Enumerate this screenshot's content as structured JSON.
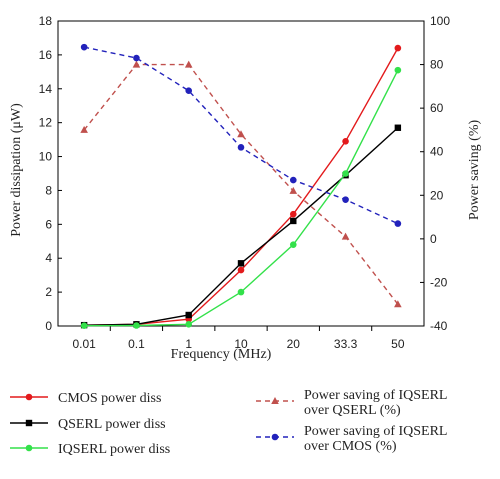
{
  "chart_data": {
    "type": "line",
    "categories": [
      "0.01",
      "0.1",
      "1",
      "10",
      "20",
      "33.3",
      "50"
    ],
    "xlabel": "Frequency (MHz)",
    "ylabel_left": "Power dissipation (μW)",
    "ylabel_right": "Power saving (%)",
    "ylim_left": [
      0,
      18
    ],
    "ylim_right": [
      -40,
      100
    ],
    "yticks_left": [
      0,
      2,
      4,
      6,
      8,
      10,
      12,
      14,
      16,
      18
    ],
    "yticks_right": [
      -40,
      -20,
      0,
      20,
      40,
      60,
      80,
      100
    ],
    "grid": false,
    "legend_position": "bottom",
    "series": [
      {
        "name": "CMOS power diss",
        "axis": "left",
        "color": "#e31a1c",
        "marker": "circle",
        "dash": false,
        "values": [
          0.05,
          0.1,
          0.4,
          3.3,
          6.6,
          10.9,
          16.4
        ]
      },
      {
        "name": "QSERL power diss",
        "axis": "left",
        "color": "#000000",
        "marker": "square",
        "dash": false,
        "values": [
          0.05,
          0.1,
          0.65,
          3.7,
          6.2,
          8.9,
          11.7
        ]
      },
      {
        "name": "IQSERL power diss",
        "axis": "left",
        "color": "#33e14a",
        "marker": "circle",
        "dash": false,
        "values": [
          0.02,
          0.03,
          0.1,
          2.0,
          4.8,
          9.0,
          15.1
        ]
      },
      {
        "name": "Power saving of IQSERL over QSERL (%)",
        "axis": "right",
        "color": "#c0504d",
        "marker": "triangle",
        "dash": true,
        "values": [
          50,
          80,
          80,
          48,
          22,
          1,
          -30
        ]
      },
      {
        "name": "Power saving of IQSERL over CMOS (%)",
        "axis": "right",
        "color": "#2222bb",
        "marker": "circle",
        "dash": true,
        "values": [
          88,
          83,
          68,
          42,
          27,
          18,
          7
        ]
      }
    ],
    "legend": {
      "items": [
        {
          "lines": [
            "CMOS power diss"
          ]
        },
        {
          "lines": [
            "QSERL power diss"
          ]
        },
        {
          "lines": [
            "IQSERL power diss"
          ]
        },
        {
          "lines": [
            "Power saving of IQSERL",
            "over QSERL (%)"
          ]
        },
        {
          "lines": [
            "Power saving of IQSERL",
            "over CMOS (%)"
          ]
        }
      ]
    }
  }
}
